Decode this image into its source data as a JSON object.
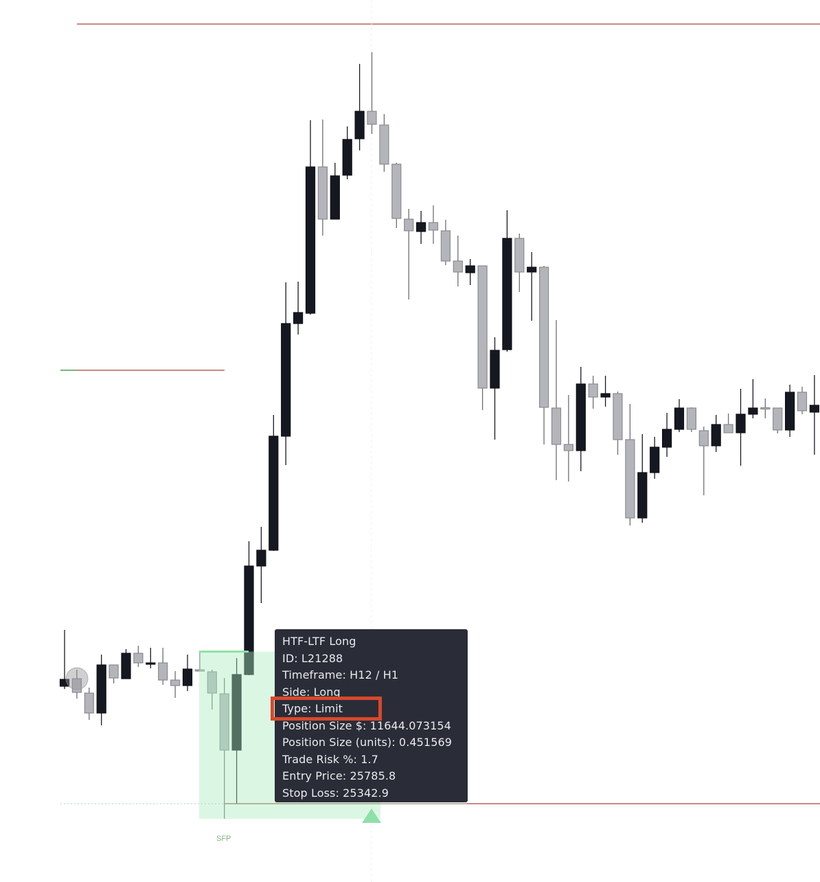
{
  "chart_data": {
    "type": "candlestick",
    "title": "",
    "xlabel": "",
    "ylabel": "",
    "ylim": [
      25115,
      27683
    ],
    "grid": false,
    "colors": {
      "up": "#161821",
      "down": "#b4b5ba",
      "down_border": "#8a8b90",
      "zone": "#dcf5e3",
      "zone_edge": "#8fe0a3",
      "stop_line": "#c98a85",
      "level_green": "#79b47a",
      "highlight": "#d9482b",
      "tooltip_bg": "#2a2d37"
    },
    "candles": [
      [
        25685,
        25849,
        25677,
        25705
      ],
      [
        25707,
        25733,
        25649,
        25667
      ],
      [
        25665,
        25681,
        25587,
        25607
      ],
      [
        25607,
        25777,
        25571,
        25747
      ],
      [
        25747,
        25747,
        25693,
        25709
      ],
      [
        25707,
        25793,
        25707,
        25781
      ],
      [
        25781,
        25803,
        25741,
        25753
      ],
      [
        25751,
        25797,
        25737,
        25753
      ],
      [
        25753,
        25797,
        25689,
        25703
      ],
      [
        25703,
        25729,
        25651,
        25687
      ],
      [
        25687,
        25777,
        25671,
        25735
      ],
      [
        25733,
        25783,
        25729,
        25729
      ],
      [
        25727,
        25733,
        25617,
        25665
      ],
      [
        25663,
        25709,
        25299,
        25499
      ],
      [
        25499,
        25767,
        25343,
        25719
      ],
      [
        25719,
        26107,
        25717,
        26035
      ],
      [
        26035,
        26149,
        25927,
        26081
      ],
      [
        26081,
        26475,
        26079,
        26413
      ],
      [
        26413,
        26861,
        26329,
        26741
      ],
      [
        26741,
        26863,
        26709,
        26773
      ],
      [
        26771,
        27333,
        26767,
        27197
      ],
      [
        27197,
        27335,
        26997,
        27045
      ],
      [
        27045,
        27209,
        27045,
        27171
      ],
      [
        27173,
        27315,
        27161,
        27277
      ],
      [
        27279,
        27497,
        27245,
        27359
      ],
      [
        27359,
        27531,
        27293,
        27321
      ],
      [
        27319,
        27351,
        27183,
        27205
      ],
      [
        27205,
        27209,
        27019,
        27047
      ],
      [
        27045,
        27075,
        26811,
        27011
      ],
      [
        27009,
        27069,
        26973,
        27035
      ],
      [
        27035,
        27085,
        26973,
        27013
      ],
      [
        27011,
        27043,
        26911,
        26923
      ],
      [
        26923,
        26997,
        26849,
        26891
      ],
      [
        26889,
        26929,
        26853,
        26909
      ],
      [
        26909,
        26909,
        26489,
        26553
      ],
      [
        26553,
        26701,
        26403,
        26663
      ],
      [
        26665,
        27071,
        26659,
        26989
      ],
      [
        26989,
        27003,
        26833,
        26891
      ],
      [
        26891,
        26949,
        26749,
        26905
      ],
      [
        26905,
        26909,
        26389,
        26497
      ],
      [
        26495,
        26751,
        26285,
        26389
      ],
      [
        26389,
        26533,
        26281,
        26371
      ],
      [
        26371,
        26615,
        26311,
        26565
      ],
      [
        26565,
        26589,
        26493,
        26527
      ],
      [
        26527,
        26589,
        26499,
        26537
      ],
      [
        26537,
        26543,
        26359,
        26403
      ],
      [
        26403,
        26507,
        26153,
        26175
      ],
      [
        26175,
        26419,
        26161,
        26307
      ],
      [
        26307,
        26411,
        26289,
        26381
      ],
      [
        26381,
        26481,
        26353,
        26433
      ],
      [
        26433,
        26521,
        26425,
        26495
      ],
      [
        26495,
        26497,
        26425,
        26433
      ],
      [
        26429,
        26441,
        26241,
        26385
      ],
      [
        26385,
        26475,
        26367,
        26447
      ],
      [
        26447,
        26479,
        26423,
        26423
      ],
      [
        26423,
        26551,
        26327,
        26477
      ],
      [
        26477,
        26579,
        26465,
        26495
      ],
      [
        26496,
        26523,
        26465,
        26495
      ],
      [
        26495,
        26495,
        26421,
        26431
      ],
      [
        26431,
        26563,
        26411,
        26541
      ],
      [
        26541,
        26557,
        26477,
        26487
      ],
      [
        26483,
        26591,
        26359,
        26503
      ]
    ],
    "levels": [
      {
        "price": 27613,
        "color": "#c98a85"
      },
      {
        "price": 26605,
        "color": "#c98a85"
      }
    ],
    "trade": {
      "entry": 25785.8,
      "stop": 25342.9
    },
    "annotations": {
      "sfp_label": "SFP"
    }
  },
  "tooltip": {
    "lines": [
      "HTF-LTF Long",
      "ID: L21288",
      "Timeframe: H12 / H1",
      "Side: Long",
      "Type: Limit",
      "Position Size $: 11644.073154",
      "Position Size (units): 0.451569",
      "Trade Risk %: 1.7",
      "Entry Price: 25785.8",
      "Stop Loss: 25342.9"
    ]
  }
}
